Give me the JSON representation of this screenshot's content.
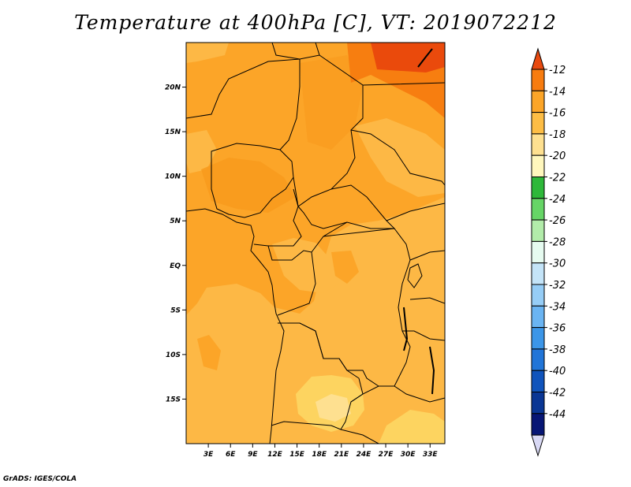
{
  "title": "Temperature at 400hPa [C], VT: 2019072212",
  "credit": "GrADS: IGES/COLA",
  "map": {
    "lon_range": [
      0,
      35
    ],
    "lat_range": [
      -20,
      25
    ],
    "lon_ticks": [
      "3E",
      "6E",
      "9E",
      "12E",
      "15E",
      "18E",
      "21E",
      "24E",
      "27E",
      "30E",
      "33E"
    ],
    "lat_ticks": [
      "20N",
      "15N",
      "10N",
      "5N",
      "EQ",
      "5S",
      "10S",
      "15S"
    ],
    "field_colors": {
      "le_-20": "#fee090",
      "-20_-18": "#fdd460",
      "-18_-16": "#fdb845",
      "-16_-14": "#fca528",
      "-14_-12": "#f77e10",
      "gt_-12": "#ea4a0c"
    }
  },
  "colorbar": {
    "labels": [
      "-12",
      "-14",
      "-16",
      "-18",
      "-20",
      "-22",
      "-24",
      "-26",
      "-28",
      "-30",
      "-32",
      "-34",
      "-36",
      "-38",
      "-40",
      "-42",
      "-44"
    ],
    "colors": [
      "#e84a10",
      "#f77c10",
      "#fca528",
      "#fdbd45",
      "#fee090",
      "#fff7bd",
      "#2eb83a",
      "#66d566",
      "#b2ecaa",
      "#e6fbf0",
      "#c4e4f8",
      "#96cdf6",
      "#6ab4f2",
      "#3c96e8",
      "#2175d8",
      "#1054bc",
      "#0a3694",
      "#071675",
      "#d8d8f4"
    ]
  }
}
